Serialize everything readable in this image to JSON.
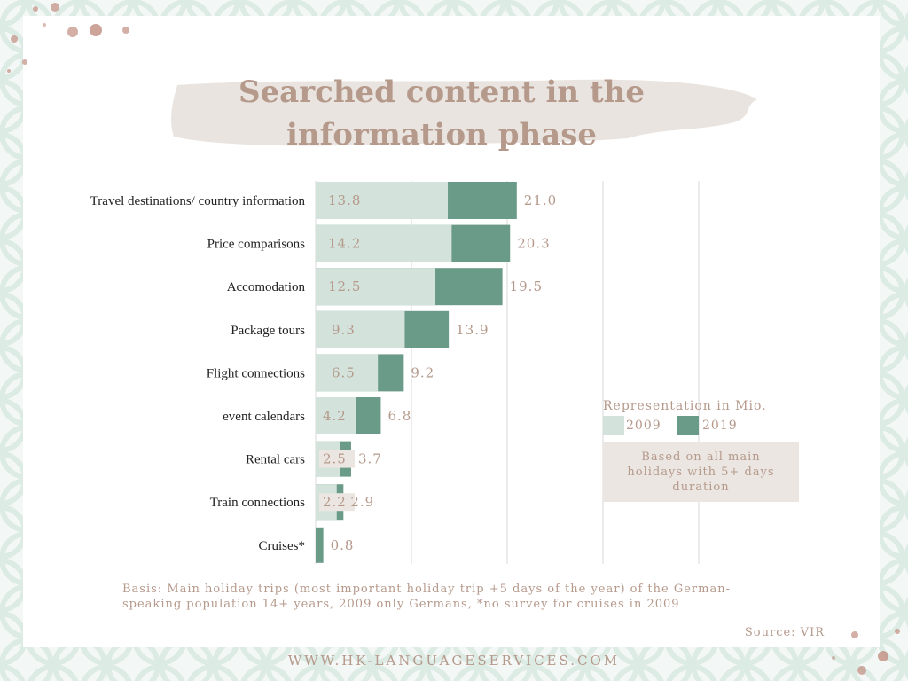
{
  "title_lines": [
    "Searched content in the",
    "information phase"
  ],
  "colors": {
    "series_2009": "#d3e3dc",
    "series_2019": "#6a9a88",
    "label_text": "#b5998b",
    "grid": "#d9d9d9",
    "note_bg": "#ebe6e1",
    "dots": "#b98275"
  },
  "chart_data": {
    "type": "bar",
    "orientation": "horizontal",
    "categories": [
      "Travel destinations/ country information",
      "Price comparisons",
      "Accomodation",
      "Package tours",
      "Flight connections",
      "event calendars",
      "Rental cars",
      "Train connections",
      "Cruises*"
    ],
    "series": [
      {
        "name": "2009",
        "values": [
          13.8,
          14.2,
          12.5,
          9.3,
          6.5,
          4.2,
          2.5,
          2.2,
          null
        ],
        "labels": [
          "13.8",
          "14.2",
          "12.5",
          "9.3",
          "6.5",
          "4.2",
          "2.5",
          "2.2",
          ""
        ]
      },
      {
        "name": "2019",
        "values": [
          21.0,
          20.3,
          19.5,
          13.9,
          9.2,
          6.8,
          3.7,
          2.9,
          0.8
        ],
        "labels": [
          "21.0",
          "20.3",
          "19.5",
          "13.9",
          "9.2",
          "6.8",
          "3.7",
          "2.9",
          "0.8"
        ]
      }
    ],
    "overlay": true,
    "xlim": [
      0,
      25
    ],
    "gridlines_at": [
      0,
      10,
      20,
      30,
      40
    ],
    "grid": true,
    "legend_placement": "right"
  },
  "legend": {
    "title": "Representation in Mio.",
    "items": [
      "2009",
      "2019"
    ]
  },
  "note": "Based on all main holidays with 5+ days duration",
  "basis": "Basis: Main holiday trips (most important holiday trip +5 days of the year) of the German-speaking population 14+ years, 2009 only Germans, *no survey for cruises in 2009",
  "source": "Source: VIR",
  "footer": "WWW.HK-LANGUAGESERVICES.COM"
}
